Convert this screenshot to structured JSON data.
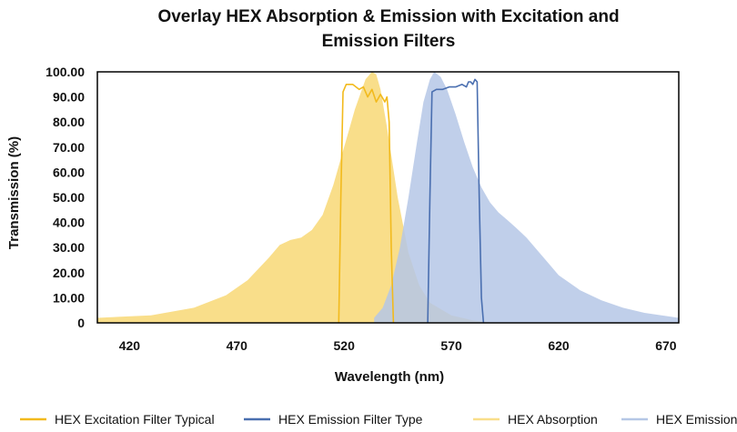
{
  "chart_data": {
    "type": "area",
    "title_lines": [
      "Overlay HEX Absorption & Emission with Excitation and",
      "Emission Filters"
    ],
    "xlabel": "Wavelength (nm)",
    "ylabel": "Transmission (%)",
    "xlim": [
      405,
      676
    ],
    "ylim": [
      0,
      100
    ],
    "x_ticks": [
      "420",
      "470",
      "520",
      "570",
      "620",
      "670"
    ],
    "x_tick_values": [
      420,
      470,
      520,
      570,
      620,
      670
    ],
    "y_ticks": [
      "100.00",
      "90.00",
      "80.00",
      "70.00",
      "60.00",
      "50.00",
      "40.00",
      "30.00",
      "20.00",
      "10.00",
      "0"
    ],
    "y_tick_values": [
      100,
      90,
      80,
      70,
      60,
      50,
      40,
      30,
      20,
      10,
      0
    ],
    "grid": false,
    "legend_position": "bottom",
    "series": [
      {
        "name": "HEX Excitation Filter Typical",
        "kind": "line",
        "color": "#F2BA1D",
        "x": [
          517.5,
          518.5,
          519.5,
          521,
          524,
          527,
          529,
          531,
          533,
          535,
          537,
          539,
          540,
          541,
          542,
          543
        ],
        "y": [
          0,
          50,
          92,
          95,
          95,
          93,
          94,
          90,
          93,
          88,
          91,
          88,
          90,
          80,
          30,
          0
        ]
      },
      {
        "name": "HEX Emission Filter Type",
        "kind": "line",
        "color": "#4A6FB0",
        "x": [
          559,
          560,
          561,
          563,
          566,
          569,
          572,
          575,
          577,
          578,
          579,
          580,
          581,
          582,
          583,
          584,
          585
        ],
        "y": [
          0,
          50,
          92,
          93,
          93,
          94,
          94,
          95,
          94,
          96,
          96,
          95,
          97,
          96,
          50,
          10,
          0
        ]
      },
      {
        "name": "HEX Absorption",
        "kind": "area",
        "color": "#F9DE8A",
        "x": [
          405,
          430,
          450,
          465,
          475,
          485,
          490,
          495,
          500,
          505,
          510,
          515,
          520,
          525,
          530,
          533,
          535,
          537,
          540,
          545,
          550,
          555,
          560,
          570,
          580,
          590
        ],
        "y": [
          2,
          3,
          6,
          11,
          17,
          26,
          31,
          33,
          34,
          37,
          43,
          55,
          70,
          85,
          97,
          100,
          99,
          93,
          78,
          50,
          28,
          15,
          8,
          3,
          1,
          0
        ]
      },
      {
        "name": "HEX Emission",
        "kind": "area",
        "color": "#B5C7E6",
        "x": [
          534,
          538,
          542,
          546,
          550,
          554,
          557,
          560,
          562,
          565,
          568,
          572,
          576,
          580,
          584,
          588,
          592,
          596,
          600,
          605,
          610,
          615,
          620,
          630,
          640,
          650,
          660,
          676
        ],
        "y": [
          2,
          6,
          15,
          30,
          50,
          72,
          88,
          97,
          100,
          98,
          93,
          83,
          72,
          62,
          54,
          48,
          44,
          41,
          38,
          34,
          29,
          24,
          19,
          13,
          9,
          6,
          4,
          2
        ]
      }
    ]
  }
}
